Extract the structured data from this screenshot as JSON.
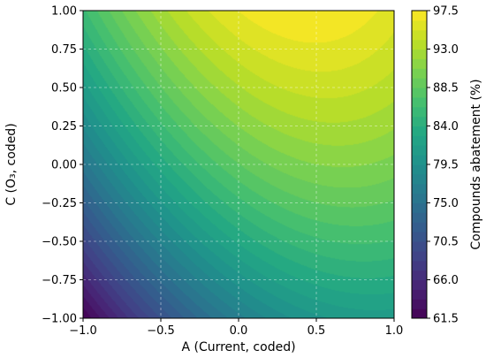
{
  "chart_data": {
    "type": "heatmap",
    "subtype": "filled-contour",
    "title": "",
    "xlabel": "A (Current, coded)",
    "ylabel": "C (O₃, coded)",
    "xlim": [
      -1.0,
      1.0
    ],
    "ylim": [
      -1.0,
      1.0
    ],
    "x_ticks": [
      "−1.0",
      "−0.5",
      "0.0",
      "0.5",
      "1.0"
    ],
    "y_ticks": [
      "−1.00",
      "−0.75",
      "−0.50",
      "−0.25",
      "0.00",
      "0.25",
      "0.50",
      "0.75",
      "1.00"
    ],
    "x_tick_values": [
      -1.0,
      -0.5,
      0.0,
      0.5,
      1.0
    ],
    "y_tick_values": [
      -1.0,
      -0.75,
      -0.5,
      -0.25,
      0.0,
      0.25,
      0.5,
      0.75,
      1.0
    ],
    "grid": true,
    "grid_style": "dashed",
    "colormap": "viridis",
    "colorbar": {
      "label": "Compounds abatement (%)",
      "range": [
        61.5,
        97.5
      ],
      "ticks": [
        "61.5",
        "66.0",
        "70.5",
        "75.0",
        "79.5",
        "84.0",
        "88.5",
        "93.0",
        "97.5"
      ],
      "tick_values": [
        61.5,
        66.0,
        70.5,
        75.0,
        79.5,
        84.0,
        88.5,
        93.0,
        97.5
      ],
      "placement": "right"
    },
    "surface": {
      "z_at_center": 82.0,
      "z_min": 61.5,
      "z_max": 97.5,
      "min_location": [
        -1.0,
        -1.0
      ],
      "max_location": [
        0.45,
        1.0
      ]
    }
  }
}
